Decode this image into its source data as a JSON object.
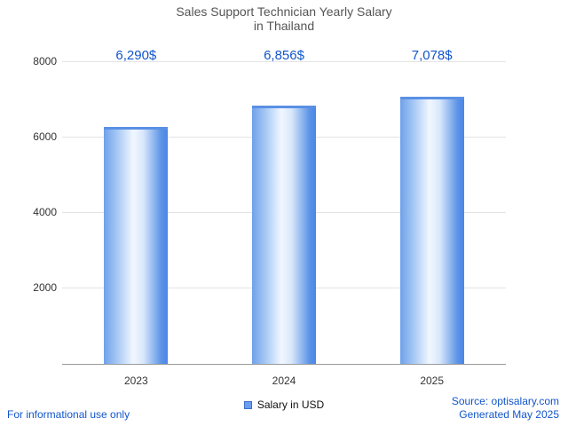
{
  "chart_data": {
    "type": "bar",
    "title": "Sales Support Technician Yearly Salary",
    "subtitle": "in Thailand",
    "categories": [
      "2023",
      "2024",
      "2025"
    ],
    "values": [
      6290,
      6856,
      7078
    ],
    "value_labels": [
      "6,290$",
      "6,856$",
      "7,078$"
    ],
    "yticks": [
      2000,
      4000,
      6000,
      8000
    ],
    "ylim": [
      0,
      8000
    ],
    "xlabel": "",
    "ylabel": "",
    "grid": true,
    "legend": "Salary in USD",
    "legend_position": "bottom-center",
    "bar_color": "#4a86e8",
    "value_label_color": "#1155cc"
  },
  "footer": {
    "left": "For informational use only",
    "source": "Source: optisalary.com",
    "generated": "Generated May 2025"
  },
  "colors": {
    "accent_blue": "#1155cc",
    "title_gray": "#555555"
  }
}
